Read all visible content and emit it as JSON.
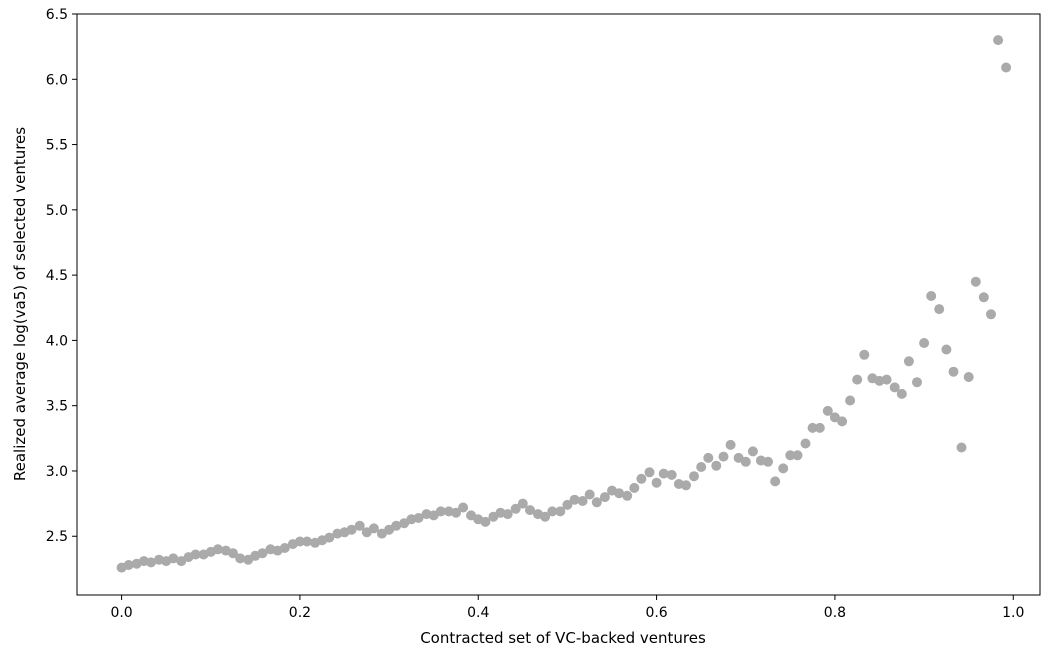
{
  "chart_data": {
    "type": "scatter",
    "xlabel": "Contracted set of VC-backed ventures",
    "ylabel": "Realized average log(va5) of selected ventures",
    "xlim": [
      -0.05,
      1.03
    ],
    "ylim": [
      2.05,
      6.5
    ],
    "xticks": [
      0.0,
      0.2,
      0.4,
      0.6,
      0.8,
      1.0
    ],
    "xtick_labels": [
      "0.0",
      "0.2",
      "0.4",
      "0.6",
      "0.8",
      "1.0"
    ],
    "yticks": [
      2.5,
      3.0,
      3.5,
      4.0,
      4.5,
      5.0,
      5.5,
      6.0,
      6.5
    ],
    "ytick_labels": [
      "2.5",
      "3.0",
      "3.5",
      "4.0",
      "4.5",
      "5.0",
      "5.5",
      "6.0",
      "6.5"
    ],
    "grid": false,
    "marker_color": "#aaaaaa",
    "points": [
      [
        0.0,
        2.26
      ],
      [
        0.008,
        2.28
      ],
      [
        0.017,
        2.29
      ],
      [
        0.025,
        2.31
      ],
      [
        0.033,
        2.3
      ],
      [
        0.042,
        2.32
      ],
      [
        0.05,
        2.31
      ],
      [
        0.058,
        2.33
      ],
      [
        0.067,
        2.31
      ],
      [
        0.075,
        2.34
      ],
      [
        0.083,
        2.36
      ],
      [
        0.092,
        2.36
      ],
      [
        0.1,
        2.38
      ],
      [
        0.108,
        2.4
      ],
      [
        0.117,
        2.39
      ],
      [
        0.125,
        2.37
      ],
      [
        0.133,
        2.33
      ],
      [
        0.142,
        2.32
      ],
      [
        0.15,
        2.35
      ],
      [
        0.158,
        2.37
      ],
      [
        0.167,
        2.4
      ],
      [
        0.175,
        2.39
      ],
      [
        0.183,
        2.41
      ],
      [
        0.192,
        2.44
      ],
      [
        0.2,
        2.46
      ],
      [
        0.208,
        2.46
      ],
      [
        0.217,
        2.45
      ],
      [
        0.225,
        2.47
      ],
      [
        0.233,
        2.49
      ],
      [
        0.242,
        2.52
      ],
      [
        0.25,
        2.53
      ],
      [
        0.258,
        2.55
      ],
      [
        0.267,
        2.58
      ],
      [
        0.275,
        2.53
      ],
      [
        0.283,
        2.56
      ],
      [
        0.292,
        2.52
      ],
      [
        0.3,
        2.55
      ],
      [
        0.308,
        2.58
      ],
      [
        0.317,
        2.6
      ],
      [
        0.325,
        2.63
      ],
      [
        0.333,
        2.64
      ],
      [
        0.342,
        2.67
      ],
      [
        0.35,
        2.66
      ],
      [
        0.358,
        2.69
      ],
      [
        0.367,
        2.69
      ],
      [
        0.375,
        2.68
      ],
      [
        0.383,
        2.72
      ],
      [
        0.392,
        2.66
      ],
      [
        0.4,
        2.63
      ],
      [
        0.408,
        2.61
      ],
      [
        0.417,
        2.65
      ],
      [
        0.425,
        2.68
      ],
      [
        0.433,
        2.67
      ],
      [
        0.442,
        2.71
      ],
      [
        0.45,
        2.75
      ],
      [
        0.458,
        2.7
      ],
      [
        0.467,
        2.67
      ],
      [
        0.475,
        2.65
      ],
      [
        0.483,
        2.69
      ],
      [
        0.492,
        2.69
      ],
      [
        0.5,
        2.74
      ],
      [
        0.508,
        2.78
      ],
      [
        0.517,
        2.77
      ],
      [
        0.525,
        2.82
      ],
      [
        0.533,
        2.76
      ],
      [
        0.542,
        2.8
      ],
      [
        0.55,
        2.85
      ],
      [
        0.558,
        2.83
      ],
      [
        0.567,
        2.81
      ],
      [
        0.575,
        2.87
      ],
      [
        0.583,
        2.94
      ],
      [
        0.592,
        2.99
      ],
      [
        0.6,
        2.91
      ],
      [
        0.608,
        2.98
      ],
      [
        0.617,
        2.97
      ],
      [
        0.625,
        2.9
      ],
      [
        0.633,
        2.89
      ],
      [
        0.642,
        2.96
      ],
      [
        0.65,
        3.03
      ],
      [
        0.658,
        3.1
      ],
      [
        0.667,
        3.04
      ],
      [
        0.675,
        3.11
      ],
      [
        0.683,
        3.2
      ],
      [
        0.692,
        3.1
      ],
      [
        0.7,
        3.07
      ],
      [
        0.708,
        3.15
      ],
      [
        0.717,
        3.08
      ],
      [
        0.725,
        3.07
      ],
      [
        0.733,
        2.92
      ],
      [
        0.742,
        3.02
      ],
      [
        0.75,
        3.12
      ],
      [
        0.758,
        3.12
      ],
      [
        0.767,
        3.21
      ],
      [
        0.775,
        3.33
      ],
      [
        0.783,
        3.33
      ],
      [
        0.792,
        3.46
      ],
      [
        0.8,
        3.41
      ],
      [
        0.808,
        3.38
      ],
      [
        0.817,
        3.54
      ],
      [
        0.825,
        3.7
      ],
      [
        0.833,
        3.89
      ],
      [
        0.842,
        3.71
      ],
      [
        0.85,
        3.69
      ],
      [
        0.858,
        3.7
      ],
      [
        0.867,
        3.64
      ],
      [
        0.875,
        3.59
      ],
      [
        0.883,
        3.84
      ],
      [
        0.892,
        3.68
      ],
      [
        0.9,
        3.98
      ],
      [
        0.908,
        4.34
      ],
      [
        0.917,
        4.24
      ],
      [
        0.925,
        3.93
      ],
      [
        0.933,
        3.76
      ],
      [
        0.942,
        3.18
      ],
      [
        0.95,
        3.72
      ],
      [
        0.958,
        4.45
      ],
      [
        0.967,
        4.33
      ],
      [
        0.975,
        4.2
      ],
      [
        0.983,
        6.3
      ],
      [
        0.992,
        6.09
      ]
    ]
  }
}
